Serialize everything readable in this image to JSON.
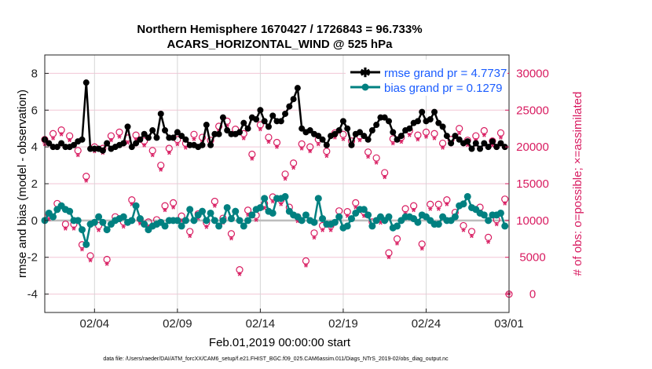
{
  "chart_data": {
    "type": "line",
    "title": "Northern Hemisphere 1670427 / 1726843 = 96.733%",
    "subtitle": "ACARS_HORIZONTAL_WIND @ 525 hPa",
    "xlabel": "Feb.01,2019 00:00:00 start",
    "ylabel": "rmse and bias (model - observation)",
    "y2label": "# of obs: o=possible; ×=assimilated",
    "footer": "data file: /Users/raeder/DAI/ATM_forcXX/CAM6_setup/f.e21.FHIST_BGC.f09_025.CAM6assim.011/Diags_NTrS_2019-02/obs_diag_output.nc",
    "x_unit": "days since Feb.01,2019 00Z",
    "x_step_days": 0.25,
    "xlim": [
      0,
      28
    ],
    "ylim": [
      -5,
      9
    ],
    "y2lim": [
      -2500,
      32500
    ],
    "x_ticks": [
      {
        "day": 3,
        "label": "02/04"
      },
      {
        "day": 8,
        "label": "02/09"
      },
      {
        "day": 13,
        "label": "02/14"
      },
      {
        "day": 18,
        "label": "02/19"
      },
      {
        "day": 23,
        "label": "02/24"
      },
      {
        "day": 28,
        "label": "03/01"
      }
    ],
    "y_ticks": [
      {
        "v": -4,
        "label": "-4"
      },
      {
        "v": -2,
        "label": "-2"
      },
      {
        "v": 0,
        "label": "0"
      },
      {
        "v": 2,
        "label": "2"
      },
      {
        "v": 4,
        "label": "4"
      },
      {
        "v": 6,
        "label": "6"
      },
      {
        "v": 8,
        "label": "8"
      }
    ],
    "y2_ticks": [
      {
        "v": 0,
        "label": "0"
      },
      {
        "v": 5000,
        "label": "5000"
      },
      {
        "v": 10000,
        "label": "10000"
      },
      {
        "v": 15000,
        "label": "15000"
      },
      {
        "v": 20000,
        "label": "20000"
      },
      {
        "v": 25000,
        "label": "25000"
      },
      {
        "v": 30000,
        "label": "30000"
      }
    ],
    "grid": true,
    "legend_position": "top-right",
    "colors": {
      "rmse": "#000000",
      "bias": "#008080",
      "obs": "#d81b60",
      "legend_text": "#1a5cff",
      "zero_line": "#bdbdbd"
    },
    "series": [
      {
        "name": "rmse",
        "legend": "rmse grand pr = 4.7737",
        "values": [
          4.4,
          4.2,
          4.0,
          4.0,
          4.2,
          4.0,
          4.0,
          4.1,
          4.3,
          4.4,
          7.5,
          3.9,
          3.9,
          3.9,
          3.8,
          4.2,
          3.9,
          4.0,
          4.1,
          4.2,
          5.1,
          4.0,
          4.2,
          4.4,
          4.7,
          4.5,
          4.9,
          4.5,
          5.8,
          4.9,
          4.5,
          4.5,
          4.8,
          4.6,
          4.4,
          4.1,
          4.1,
          4.0,
          4.1,
          5.2,
          4.1,
          4.7,
          4.7,
          5.6,
          4.9,
          4.7,
          4.7,
          4.8,
          5.3,
          5.0,
          5.6,
          5.5,
          6.0,
          5.4,
          5.1,
          5.7,
          5.4,
          5.4,
          5.8,
          6.2,
          6.6,
          7.2,
          5.0,
          4.8,
          4.9,
          4.7,
          4.6,
          4.4,
          4.1,
          4.6,
          4.7,
          4.9,
          5.4,
          5.0,
          4.1,
          4.7,
          4.8,
          4.6,
          4.4,
          4.9,
          5.2,
          5.6,
          5.6,
          5.4,
          4.8,
          4.4,
          4.6,
          4.9,
          5.0,
          5.3,
          5.4,
          5.9,
          5.4,
          5.5,
          5.9,
          5.3,
          5.1,
          4.6,
          4.2,
          4.6,
          4.4,
          4.2,
          4.3,
          3.9,
          4.2,
          3.9,
          4.2,
          4.0,
          4.3,
          4.0,
          4.2,
          4.0
        ]
      },
      {
        "name": "bias",
        "legend": "bias grand pr = 0.1279",
        "values": [
          0.0,
          0.4,
          0.2,
          0.6,
          0.8,
          0.6,
          0.5,
          0.0,
          0.0,
          -0.5,
          -1.3,
          -0.2,
          -0.1,
          0.2,
          -0.1,
          -0.5,
          -0.2,
          0.0,
          0.1,
          0.2,
          -0.1,
          0.0,
          0.8,
          0.1,
          -0.2,
          -0.5,
          -0.3,
          -0.2,
          -0.1,
          -0.3,
          0.0,
          0.0,
          0.0,
          -0.3,
          0.0,
          0.6,
          0.0,
          0.3,
          0.5,
          0.0,
          0.4,
          0.0,
          -0.3,
          0.0,
          0.7,
          0.1,
          0.5,
          0.0,
          -0.3,
          0.0,
          0.3,
          0.6,
          0.7,
          1.2,
          0.5,
          0.4,
          1.2,
          1.2,
          1.3,
          0.5,
          0.3,
          0.2,
          0.0,
          0.3,
          0.0,
          -0.1,
          1.2,
          0.1,
          -0.2,
          -0.2,
          -0.1,
          0.2,
          -0.4,
          -0.3,
          0.1,
          0.4,
          0.6,
          0.6,
          0.3,
          -0.3,
          0.0,
          0.2,
          0.0,
          0.2,
          -0.4,
          -0.3,
          0.0,
          0.2,
          0.2,
          0.1,
          -0.1,
          0.3,
          0.2,
          0.0,
          -0.2,
          -0.2,
          0.2,
          0.0,
          0.0,
          0.2,
          0.8,
          0.9,
          1.3,
          0.7,
          0.6,
          0.4,
          0.3,
          0.0,
          0.3,
          0.3,
          0.4,
          -0.3
        ]
      },
      {
        "name": "obs possible",
        "axis": "right",
        "values": [
          21000,
          10800,
          21800,
          12300,
          22300,
          9500,
          21500,
          9500,
          19500,
          6700,
          16000,
          5200,
          20000,
          9300,
          19800,
          4700,
          21500,
          10500,
          22000,
          9800,
          21200,
          12800,
          21600,
          10200,
          20800,
          9800,
          19500,
          10100,
          17500,
          12000,
          19800,
          12400,
          21000,
          10600,
          20500,
          8500,
          21700,
          10900,
          21300,
          9700,
          20900,
          12600,
          22800,
          10300,
          23500,
          8200,
          22400,
          3300,
          21800,
          11400,
          19000,
          10700,
          23000,
          12300,
          21300,
          13200,
          20600,
          12800,
          16300,
          11800,
          17800,
          10500,
          20400,
          4500,
          20000,
          8300,
          21000,
          9300,
          19400,
          9300,
          21900,
          11300,
          21700,
          11200,
          20800,
          12400,
          21500,
          11200,
          19300,
          9800,
          18500,
          10300,
          16500,
          5600,
          21100,
          7500,
          21300,
          11600,
          22200,
          12000,
          21600,
          6800,
          22000,
          12200,
          21800,
          12200,
          20500,
          12800,
          21000,
          11100,
          22500,
          9300,
          20900,
          8500,
          21500,
          11800,
          22200,
          7700,
          20800,
          10100,
          21900,
          12900,
          0
        ]
      },
      {
        "name": "obs assimilated",
        "axis": "right",
        "values": [
          20300,
          10100,
          21100,
          11600,
          21600,
          8800,
          20800,
          8800,
          18800,
          6000,
          15300,
          4500,
          19300,
          8600,
          19100,
          4000,
          20800,
          9800,
          21300,
          9100,
          20500,
          12100,
          20900,
          9500,
          20100,
          9100,
          18800,
          9400,
          16800,
          11300,
          19100,
          11700,
          20300,
          9900,
          19800,
          7800,
          21000,
          10200,
          20600,
          9000,
          20200,
          11900,
          22100,
          9600,
          22800,
          7500,
          21700,
          2600,
          21100,
          10700,
          18300,
          10000,
          22300,
          11600,
          20600,
          12500,
          19900,
          12100,
          15600,
          11100,
          17100,
          9800,
          19700,
          3800,
          19300,
          7600,
          20300,
          8600,
          18700,
          8600,
          21200,
          10600,
          21000,
          10500,
          20100,
          11700,
          20800,
          10500,
          18600,
          9100,
          17800,
          9600,
          15800,
          4900,
          20400,
          6800,
          20600,
          10900,
          21500,
          11300,
          20900,
          6100,
          21300,
          11500,
          21100,
          11500,
          19800,
          12100,
          20300,
          10400,
          21800,
          8600,
          20200,
          7800,
          20800,
          11100,
          21500,
          7000,
          20100,
          9400,
          21200,
          12200,
          0
        ]
      }
    ]
  }
}
